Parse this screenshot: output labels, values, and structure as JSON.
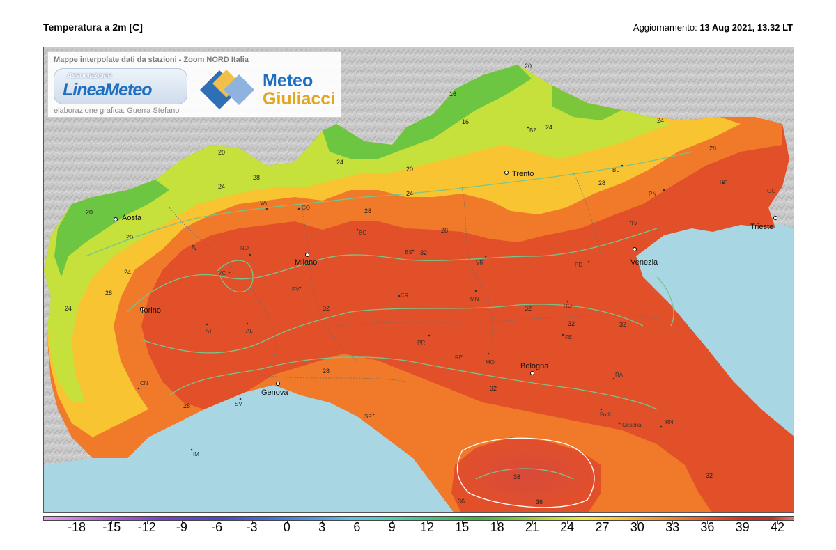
{
  "header": {
    "title": "Temperatura a 2m [C]",
    "update_label": "Aggiornamento:",
    "update_value": "13 Aug 2021, 13.32 LT"
  },
  "credits": {
    "title": "Mappe interpolate dati da stazioni - Zoom NORD Italia",
    "logo1_top": "Associazione",
    "logo1_name_a": "Linea",
    "logo1_name_b": "Meteo",
    "logo2_line1": "Meteo",
    "logo2_line2": "Giuliacci",
    "subtitle": "elaborazione grafica: Guerra Stefano"
  },
  "colors": {
    "sea": "#a9d6e3",
    "hot_core": "#d2452f",
    "hot": "#e2502a",
    "warm": "#f07a2a",
    "mild": "#f8c431",
    "cool": "#c6e03c",
    "cold": "#6cc641",
    "relief": "#c9c9c9"
  },
  "cities": [
    {
      "id": "aosta",
      "name": "Aosta"
    },
    {
      "id": "torino",
      "name": "Torino"
    },
    {
      "id": "milano",
      "name": "Milano"
    },
    {
      "id": "trento",
      "name": "Trento"
    },
    {
      "id": "venezia",
      "name": "Venezia"
    },
    {
      "id": "trieste",
      "name": "Trieste"
    },
    {
      "id": "bologna",
      "name": "Bologna"
    },
    {
      "id": "genova",
      "name": "Genova"
    }
  ],
  "provinces": [
    "VA",
    "CO",
    "BI",
    "NO",
    "VC",
    "BG",
    "BS",
    "VR",
    "PV",
    "CR",
    "MN",
    "AT",
    "AL",
    "PR",
    "RE",
    "MO",
    "FE",
    "RO",
    "PD",
    "TV",
    "PN",
    "UD",
    "GO",
    "BL",
    "BZ",
    "CN",
    "SV",
    "IM",
    "SP",
    "RA",
    "Forlì",
    "Cesena",
    "RN"
  ],
  "isotherm_labels": [
    "16",
    "20",
    "24",
    "28",
    "32",
    "36"
  ],
  "colorbar": {
    "ticks": [
      "-18",
      "-15",
      "-12",
      "-9",
      "-6",
      "-3",
      "0",
      "3",
      "6",
      "9",
      "12",
      "15",
      "18",
      "21",
      "24",
      "27",
      "30",
      "33",
      "36",
      "39",
      "42"
    ]
  }
}
